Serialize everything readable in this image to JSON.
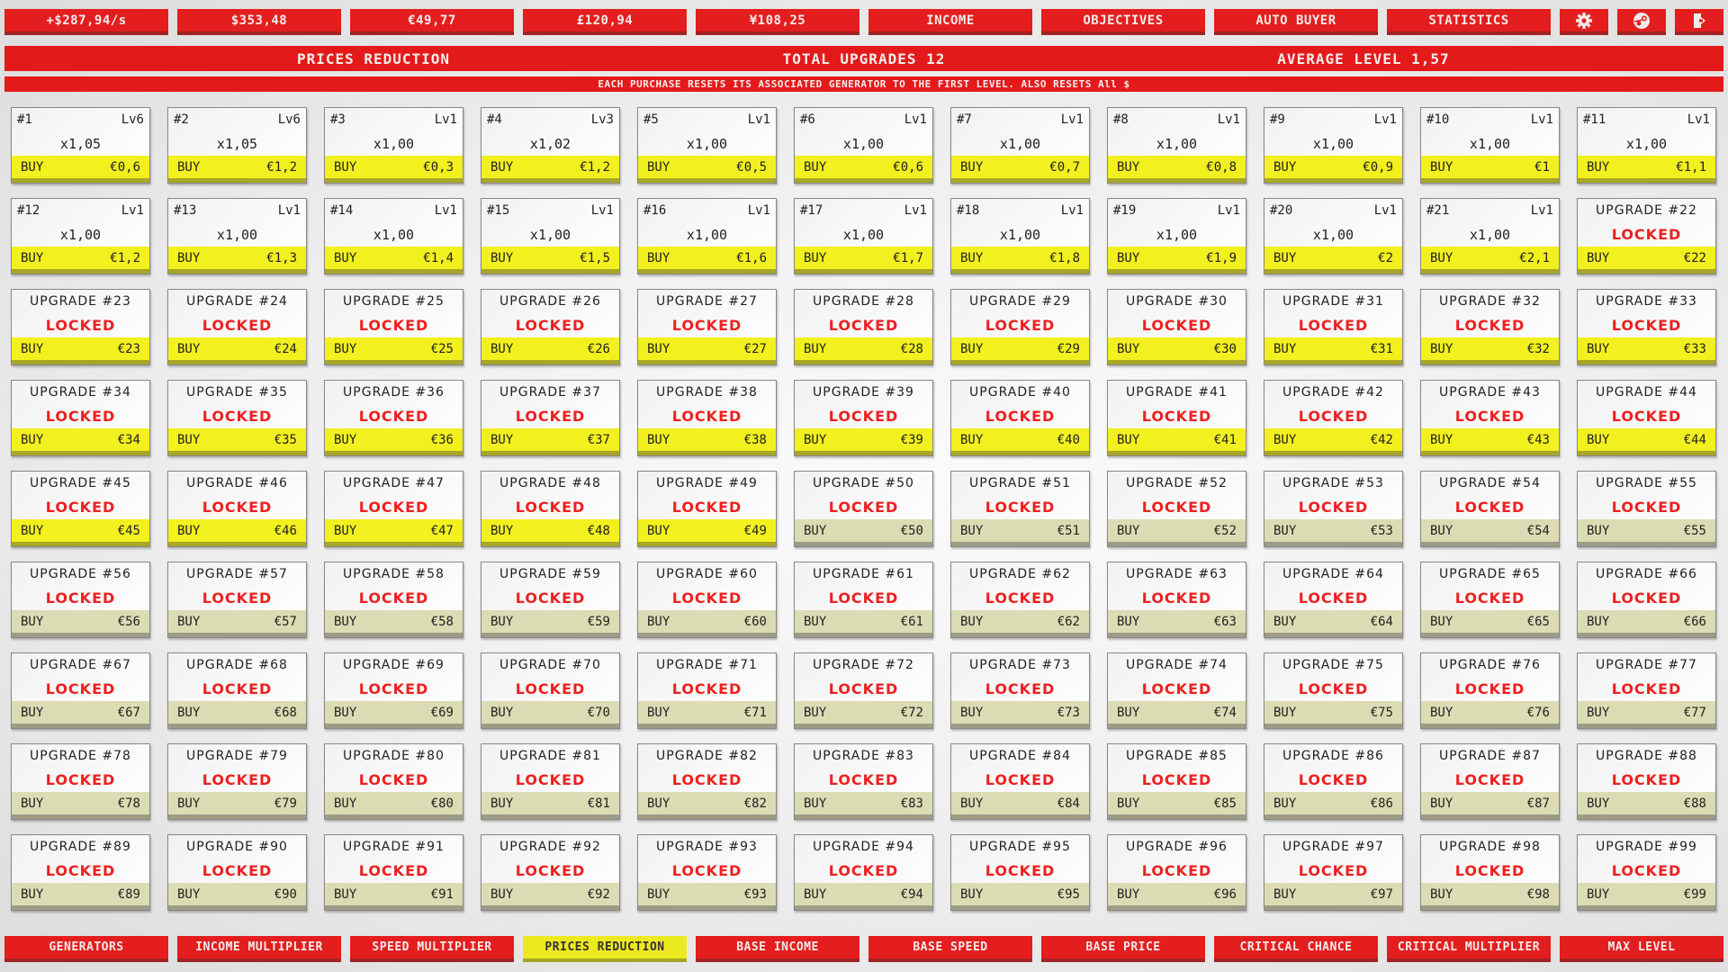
{
  "top_bar": {
    "stats": [
      "+$287,94/s",
      "$353,48",
      "€49,77",
      "£120,94",
      "¥108,25"
    ],
    "buttons": [
      "INCOME",
      "OBJECTIVES",
      "AUTO BUYER",
      "STATISTICS"
    ],
    "icons": [
      "gear-icon",
      "steam-icon",
      "exit-icon"
    ]
  },
  "header": {
    "title": "PRICES REDUCTION",
    "total_upgrades": "TOTAL UPGRADES 12",
    "average_level": "AVERAGE LEVEL 1,57"
  },
  "notice": "EACH PURCHASE RESETS ITS ASSOCIATED GENERATOR TO THE FIRST LEVEL. ALSO RESETS All $",
  "buy_label": "BUY",
  "locked_label": "LOCKED",
  "upgrade_prefix": "UPGRADE ",
  "generators": [
    {
      "id": "#1",
      "level": "Lv6",
      "mult": "x1,05",
      "price": "€0,6"
    },
    {
      "id": "#2",
      "level": "Lv6",
      "mult": "x1,05",
      "price": "€1,2"
    },
    {
      "id": "#3",
      "level": "Lv1",
      "mult": "x1,00",
      "price": "€0,3"
    },
    {
      "id": "#4",
      "level": "Lv3",
      "mult": "x1,02",
      "price": "€1,2"
    },
    {
      "id": "#5",
      "level": "Lv1",
      "mult": "x1,00",
      "price": "€0,5"
    },
    {
      "id": "#6",
      "level": "Lv1",
      "mult": "x1,00",
      "price": "€0,6"
    },
    {
      "id": "#7",
      "level": "Lv1",
      "mult": "x1,00",
      "price": "€0,7"
    },
    {
      "id": "#8",
      "level": "Lv1",
      "mult": "x1,00",
      "price": "€0,8"
    },
    {
      "id": "#9",
      "level": "Lv1",
      "mult": "x1,00",
      "price": "€0,9"
    },
    {
      "id": "#10",
      "level": "Lv1",
      "mult": "x1,00",
      "price": "€1"
    },
    {
      "id": "#11",
      "level": "Lv1",
      "mult": "x1,00",
      "price": "€1,1"
    },
    {
      "id": "#12",
      "level": "Lv1",
      "mult": "x1,00",
      "price": "€1,2"
    },
    {
      "id": "#13",
      "level": "Lv1",
      "mult": "x1,00",
      "price": "€1,3"
    },
    {
      "id": "#14",
      "level": "Lv1",
      "mult": "x1,00",
      "price": "€1,4"
    },
    {
      "id": "#15",
      "level": "Lv1",
      "mult": "x1,00",
      "price": "€1,5"
    },
    {
      "id": "#16",
      "level": "Lv1",
      "mult": "x1,00",
      "price": "€1,6"
    },
    {
      "id": "#17",
      "level": "Lv1",
      "mult": "x1,00",
      "price": "€1,7"
    },
    {
      "id": "#18",
      "level": "Lv1",
      "mult": "x1,00",
      "price": "€1,8"
    },
    {
      "id": "#19",
      "level": "Lv1",
      "mult": "x1,00",
      "price": "€1,9"
    },
    {
      "id": "#20",
      "level": "Lv1",
      "mult": "x1,00",
      "price": "€2"
    },
    {
      "id": "#21",
      "level": "Lv1",
      "mult": "x1,00",
      "price": "€2,1"
    }
  ],
  "locked_range": {
    "first": 22,
    "last": 99,
    "affordable_through": 49,
    "price_currency": "€"
  },
  "bottom_nav": [
    "GENERATORS",
    "INCOME MULTIPLIER",
    "SPEED MULTIPLIER",
    "PRICES REDUCTION",
    "BASE INCOME",
    "BASE SPEED",
    "BASE PRICE",
    "CRITICAL CHANCE",
    "CRITICAL MULTIPLIER",
    "MAX LEVEL"
  ],
  "bottom_nav_active": "PRICES REDUCTION",
  "colors": {
    "red": "#e41e1e",
    "yellow": "#f2f01e",
    "unaffordable": "#dcdcb4",
    "locked_text": "#ee2020"
  }
}
